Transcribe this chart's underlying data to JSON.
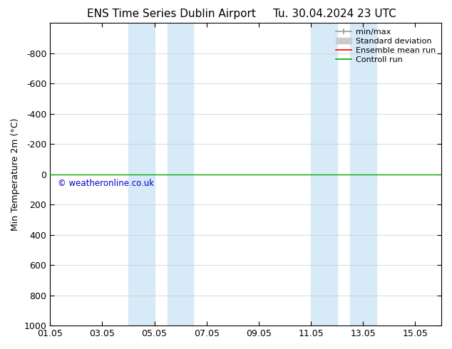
{
  "title_left": "ENS Time Series Dublin Airport",
  "title_right": "Tu. 30.04.2024 23 UTC",
  "ylabel": "Min Temperature 2m (°C)",
  "ylim_top": -1000,
  "ylim_bottom": 1000,
  "yticks": [
    -800,
    -600,
    -400,
    -200,
    0,
    200,
    400,
    600,
    800,
    1000
  ],
  "xlim_min": 0,
  "xlim_max": 15,
  "xtick_labels": [
    "01.05",
    "03.05",
    "05.05",
    "07.05",
    "09.05",
    "11.05",
    "13.05",
    "15.05"
  ],
  "xtick_positions": [
    0,
    2,
    4,
    6,
    8,
    10,
    12,
    14
  ],
  "blue_bands": [
    {
      "x_start": 3.0,
      "x_end": 4.0
    },
    {
      "x_start": 4.5,
      "x_end": 5.5
    },
    {
      "x_start": 10.0,
      "x_end": 11.0
    },
    {
      "x_start": 11.5,
      "x_end": 12.5
    }
  ],
  "green_line_y": 0,
  "copyright_text": "© weatheronline.co.uk",
  "copyright_color": "#0000cc",
  "band_color": "#d6eaf8",
  "background_color": "#ffffff",
  "grid_color": "#cccccc",
  "legend_minmax_color": "#999999",
  "legend_std_color": "#cccccc",
  "legend_ens_color": "#ff0000",
  "legend_ctrl_color": "#00aa00",
  "title_fontsize": 11,
  "axis_label_fontsize": 9,
  "tick_fontsize": 9,
  "legend_fontsize": 8
}
